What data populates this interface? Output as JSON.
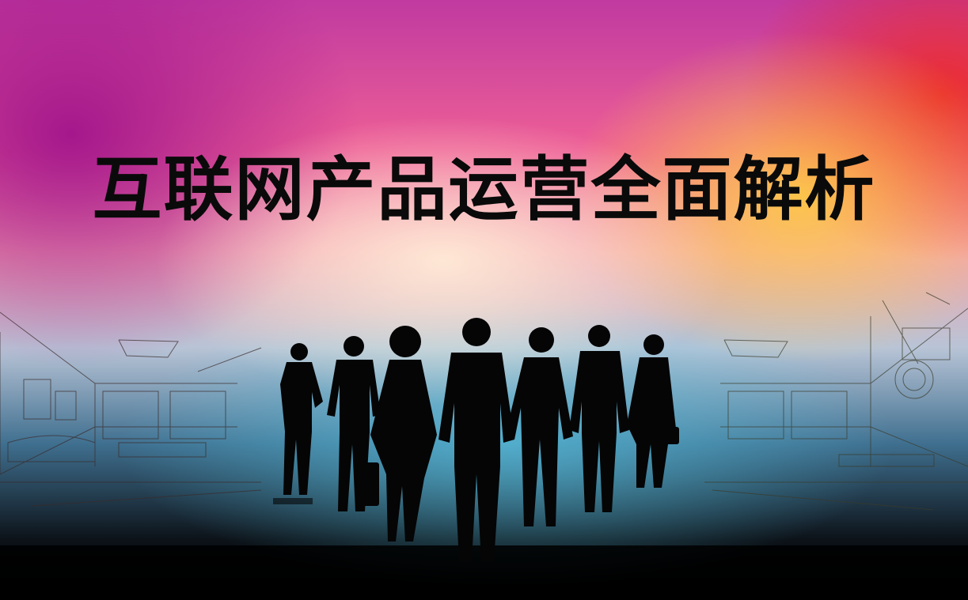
{
  "slide": {
    "title": "互联网产品运营全面解析"
  },
  "colors": {
    "top_left": "#a0148c",
    "top_right": "#eb2828",
    "center_glow": "#ffebd7",
    "bottom": "#000000",
    "title_text": "#0a0a0a"
  }
}
